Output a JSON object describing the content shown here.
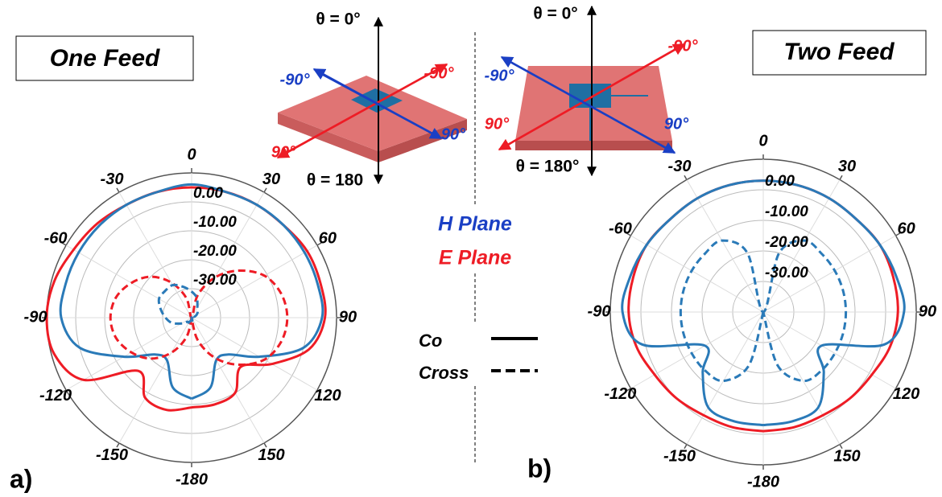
{
  "chart_data": [
    {
      "type": "polar",
      "title": "One Feed",
      "panel_label": "a)",
      "theta": [
        -180,
        -165,
        -150,
        -135,
        -120,
        -105,
        -90,
        -75,
        -60,
        -45,
        -30,
        -15,
        0,
        15,
        30,
        45,
        60,
        75,
        90,
        105,
        120,
        135,
        150,
        165,
        180
      ],
      "rlim": [
        -40,
        10
      ],
      "rticks": [
        {
          "value": 0,
          "label": "0.00"
        },
        {
          "value": -10,
          "label": "-10.00"
        },
        {
          "value": -20,
          "label": "-20.00"
        },
        {
          "value": -30,
          "label": "-30.00"
        }
      ],
      "angle_ticks": [
        0,
        30,
        60,
        90,
        120,
        150,
        -180,
        -150,
        -120,
        -90,
        -60,
        -30
      ],
      "series": [
        {
          "color": "#ee1c25",
          "dashed": false,
          "values": [
            -9,
            -7,
            -8,
            -14,
            3,
            9,
            10,
            9,
            7,
            6,
            5,
            5,
            5,
            5,
            5,
            5,
            6,
            6,
            6,
            2,
            -8,
            -16,
            -10,
            -9,
            -9
          ]
        },
        {
          "color": "#2a7ab8",
          "dashed": false,
          "values": [
            -12,
            -15,
            -23,
            -22,
            -13,
            0,
            5,
            5,
            5,
            5,
            5,
            5,
            6,
            5,
            5,
            5,
            5,
            5,
            5,
            0,
            -13,
            -22,
            -23,
            -15,
            -12
          ]
        },
        {
          "color": "#ee1c25",
          "dashed": true,
          "values": [
            -40,
            -33,
            -26,
            -20,
            -16,
            -13,
            -12,
            -13,
            -16,
            -20,
            -26,
            -33,
            -40,
            -32,
            -24,
            -17,
            -11,
            -8,
            -7,
            -8,
            -11,
            -17,
            -24,
            -32,
            -40
          ]
        },
        {
          "color": "#2a7ab8",
          "dashed": true,
          "values": [
            -39,
            -39,
            -38,
            -38,
            -36,
            -33,
            -31,
            -29,
            -27,
            -27,
            -27,
            -29,
            -31,
            -33,
            -36,
            -37,
            -38,
            -39,
            -39,
            -39,
            -40,
            -40,
            -40,
            -39,
            -39
          ]
        }
      ]
    },
    {
      "type": "polar",
      "title": "Two Feed",
      "panel_label": "b)",
      "theta": [
        -180,
        -165,
        -150,
        -135,
        -120,
        -105,
        -90,
        -75,
        -60,
        -45,
        -30,
        -15,
        0,
        15,
        30,
        45,
        60,
        75,
        90,
        105,
        120,
        135,
        150,
        165,
        180
      ],
      "rlim": [
        -40,
        10
      ],
      "rticks": [
        {
          "value": 0,
          "label": "0.00"
        },
        {
          "value": -10,
          "label": "-10.00"
        },
        {
          "value": -20,
          "label": "-20.00"
        },
        {
          "value": -30,
          "label": "-30.00"
        }
      ],
      "angle_ticks": [
        0,
        30,
        60,
        90,
        120,
        150,
        -180,
        -150,
        -120,
        -90,
        -60,
        -30
      ],
      "series": [
        {
          "color": "#ee1c25",
          "dashed": false,
          "values": [
            -1,
            -1,
            -1,
            0,
            1,
            3,
            4,
            4,
            4,
            3,
            3,
            3,
            3,
            3,
            3,
            3,
            4,
            4,
            4,
            3,
            1,
            0,
            -1,
            -1,
            -1
          ]
        },
        {
          "color": "#2a7ab8",
          "dashed": false,
          "values": [
            -3,
            -3,
            -4,
            -12,
            -18,
            1,
            6,
            5,
            4,
            3,
            3,
            3,
            3,
            3,
            3,
            3,
            4,
            5,
            6,
            1,
            -18,
            -12,
            -4,
            -3,
            -3
          ]
        },
        {
          "color": "#2a7ab8",
          "dashed": true,
          "values": [
            -40,
            -22,
            -14,
            -13,
            -13,
            -13,
            -13,
            -13,
            -13,
            -13,
            -13,
            -20,
            -40,
            -20,
            -13,
            -13,
            -13,
            -13,
            -13,
            -13,
            -13,
            -13,
            -14,
            -22,
            -40
          ]
        }
      ]
    }
  ],
  "legend": {
    "planes": [
      {
        "name": "H Plane",
        "color": "#1a3fc4"
      },
      {
        "name": "E Plane",
        "color": "#ee1c25"
      }
    ],
    "styles": [
      {
        "name": "Co",
        "dashed": false
      },
      {
        "name": "Cross",
        "dashed": true
      }
    ]
  },
  "diagrams": [
    {
      "theta_top": "θ = 0°",
      "theta_bottom": "θ = 180",
      "red_neg": "-90°",
      "red_pos": "90°",
      "blue_neg": "-90°",
      "blue_pos": "90°"
    },
    {
      "theta_top": "θ = 0°",
      "theta_bottom": "θ = 180°",
      "red_neg": "-90°",
      "red_pos": "90°",
      "blue_neg": "-90°",
      "blue_pos": "90°"
    }
  ]
}
